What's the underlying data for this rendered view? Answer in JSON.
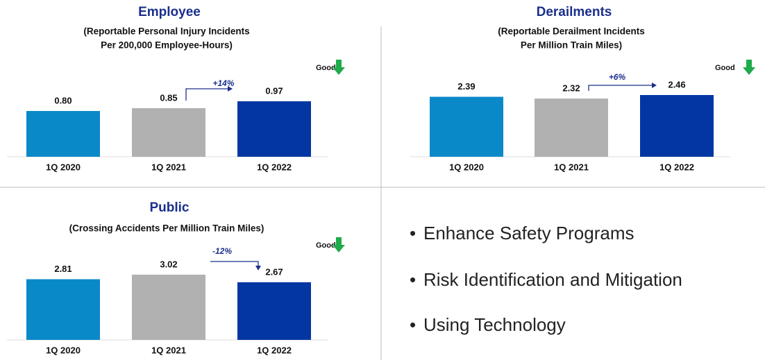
{
  "chart_data": [
    {
      "type": "bar",
      "title": "Employee",
      "subtitle": [
        "(Reportable Personal Injury Incidents",
        "Per 200,000 Employee-Hours)"
      ],
      "categories": [
        "1Q 2020",
        "1Q 2021",
        "1Q 2022"
      ],
      "values": [
        0.8,
        0.85,
        0.97
      ],
      "value_labels": [
        "0.80",
        "0.85",
        "0.97"
      ],
      "colors": [
        "#0a89c9",
        "#b1b1b1",
        "#0336a3"
      ],
      "annotation": "+14%",
      "good_label": "Good"
    },
    {
      "type": "bar",
      "title": "Derailments",
      "subtitle": [
        "(Reportable Derailment Incidents",
        "Per Million Train Miles)"
      ],
      "categories": [
        "1Q 2020",
        "1Q 2021",
        "1Q 2022"
      ],
      "values": [
        2.39,
        2.32,
        2.46
      ],
      "value_labels": [
        "2.39",
        "2.32",
        "2.46"
      ],
      "colors": [
        "#0a89c9",
        "#b1b1b1",
        "#0336a3"
      ],
      "annotation": "+6%",
      "good_label": "Good"
    },
    {
      "type": "bar",
      "title": "Public",
      "subtitle": [
        "(Crossing Accidents Per Million Train Miles)"
      ],
      "categories": [
        "1Q 2020",
        "1Q 2021",
        "1Q 2022"
      ],
      "values": [
        2.81,
        3.02,
        2.67
      ],
      "value_labels": [
        "2.81",
        "3.02",
        "2.67"
      ],
      "colors": [
        "#0a89c9",
        "#b1b1b1",
        "#0336a3"
      ],
      "annotation": "-12%",
      "good_label": "Good"
    }
  ],
  "bullets": [
    "Enhance Safety Programs",
    "Risk Identification and Mitigation",
    "Using Technology"
  ]
}
